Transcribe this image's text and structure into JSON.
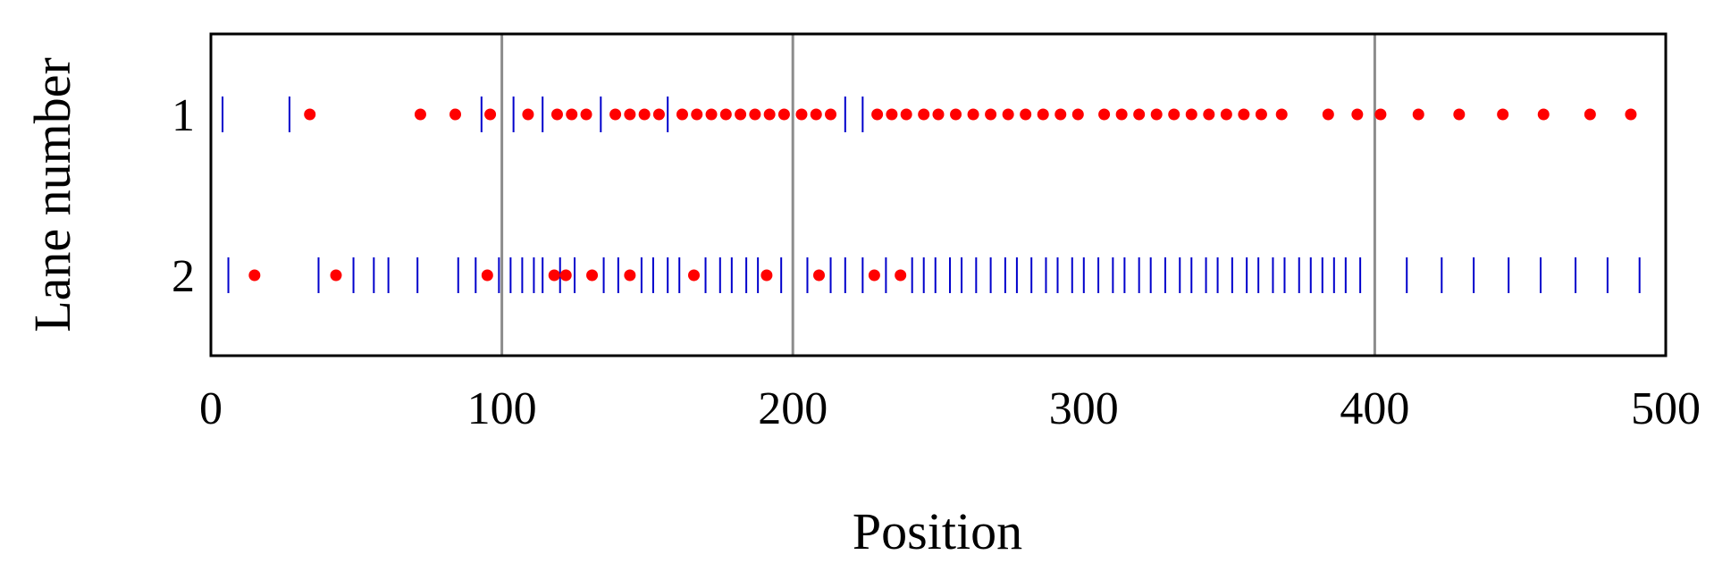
{
  "chart_data": {
    "type": "scatter",
    "title": "",
    "xlabel": "Position",
    "ylabel": "Lane number",
    "xlim": [
      0,
      500
    ],
    "x_ticks": [
      "0",
      "100",
      "200",
      "300",
      "400",
      "500"
    ],
    "x_tick_values": [
      0,
      100,
      200,
      300,
      400,
      500
    ],
    "y_ticks": [
      "1",
      "2"
    ],
    "y_tick_values": [
      1,
      2
    ],
    "vertical_reference_lines": [
      100,
      200,
      400
    ],
    "colors": {
      "dot": "#ff0000",
      "line": "#0000cc",
      "reference": "#8c8c8c",
      "frame": "#000000"
    },
    "grid": false,
    "legend": "none",
    "series": [
      {
        "lane": 1,
        "dots": [
          34,
          72,
          84,
          96,
          109,
          119,
          124,
          129,
          139,
          144,
          149,
          154,
          162,
          167,
          172,
          177,
          182,
          187,
          192,
          197,
          203,
          208,
          213,
          229,
          234,
          239,
          245,
          250,
          256,
          262,
          268,
          274,
          280,
          286,
          292,
          298,
          307,
          313,
          319,
          325,
          331,
          337,
          343,
          349,
          355,
          361,
          368,
          384,
          394,
          402,
          415,
          429,
          444,
          458,
          474,
          488
        ],
        "lines": [
          4,
          27,
          93,
          104,
          114,
          134,
          157,
          218,
          224
        ]
      },
      {
        "lane": 2,
        "dots": [
          15,
          43,
          95,
          118,
          122,
          131,
          144,
          166,
          191,
          209,
          228,
          237
        ],
        "lines": [
          6,
          37,
          49,
          56,
          61,
          71,
          85,
          91,
          99,
          103,
          107,
          111,
          114,
          120,
          125,
          135,
          140,
          148,
          152,
          157,
          161,
          170,
          175,
          179,
          184,
          188,
          196,
          205,
          213,
          218,
          224,
          232,
          241,
          245,
          249,
          254,
          258,
          263,
          268,
          273,
          277,
          282,
          287,
          291,
          296,
          300,
          305,
          310,
          314,
          319,
          323,
          328,
          333,
          337,
          342,
          346,
          351,
          356,
          360,
          365,
          369,
          374,
          378,
          382,
          386,
          390,
          395,
          411,
          423,
          434,
          446,
          457,
          469,
          480,
          491
        ]
      }
    ]
  }
}
